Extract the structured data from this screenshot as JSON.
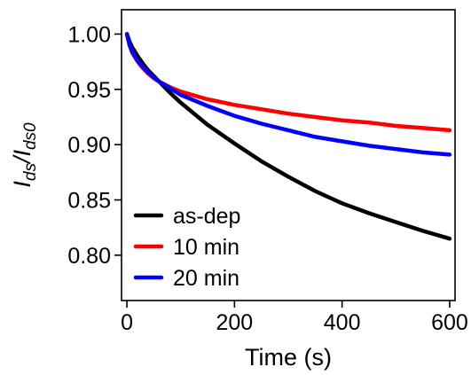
{
  "chart_data": {
    "type": "line",
    "xlabel": "Time (s)",
    "ylabel": {
      "base_1": "I",
      "sub_1": "ds",
      "slash": "/",
      "base_2": "I",
      "sub_2": "ds0"
    },
    "xlim": [
      -10,
      610
    ],
    "ylim": [
      0.759,
      1.022
    ],
    "xticks": [
      0,
      200,
      400,
      600
    ],
    "xtick_labels": [
      "0",
      "200",
      "400",
      "600"
    ],
    "yticks": [
      0.8,
      0.85,
      0.9,
      0.95,
      1.0
    ],
    "ytick_labels": [
      "0.80",
      "0.85",
      "0.90",
      "0.95",
      "1.00"
    ],
    "grid": false,
    "legend_position": "bottom-left",
    "x": [
      0,
      5,
      10,
      20,
      30,
      40,
      50,
      60,
      80,
      100,
      150,
      200,
      250,
      300,
      350,
      400,
      450,
      500,
      550,
      600
    ],
    "series": [
      {
        "name": "as-dep",
        "color": "#000000",
        "values": [
          1.0,
          0.993,
          0.988,
          0.98,
          0.973,
          0.967,
          0.962,
          0.957,
          0.947,
          0.938,
          0.918,
          0.901,
          0.885,
          0.871,
          0.858,
          0.847,
          0.838,
          0.83,
          0.822,
          0.815
        ]
      },
      {
        "name": "10 min",
        "color": "#ff0000",
        "values": [
          1.0,
          0.99,
          0.983,
          0.975,
          0.969,
          0.964,
          0.96,
          0.957,
          0.952,
          0.948,
          0.941,
          0.936,
          0.932,
          0.928,
          0.925,
          0.922,
          0.92,
          0.917,
          0.915,
          0.913
        ]
      },
      {
        "name": "20 min",
        "color": "#0000ff",
        "values": [
          1.0,
          0.99,
          0.984,
          0.976,
          0.97,
          0.965,
          0.961,
          0.957,
          0.951,
          0.945,
          0.935,
          0.926,
          0.919,
          0.913,
          0.907,
          0.903,
          0.899,
          0.896,
          0.893,
          0.891
        ]
      }
    ]
  }
}
